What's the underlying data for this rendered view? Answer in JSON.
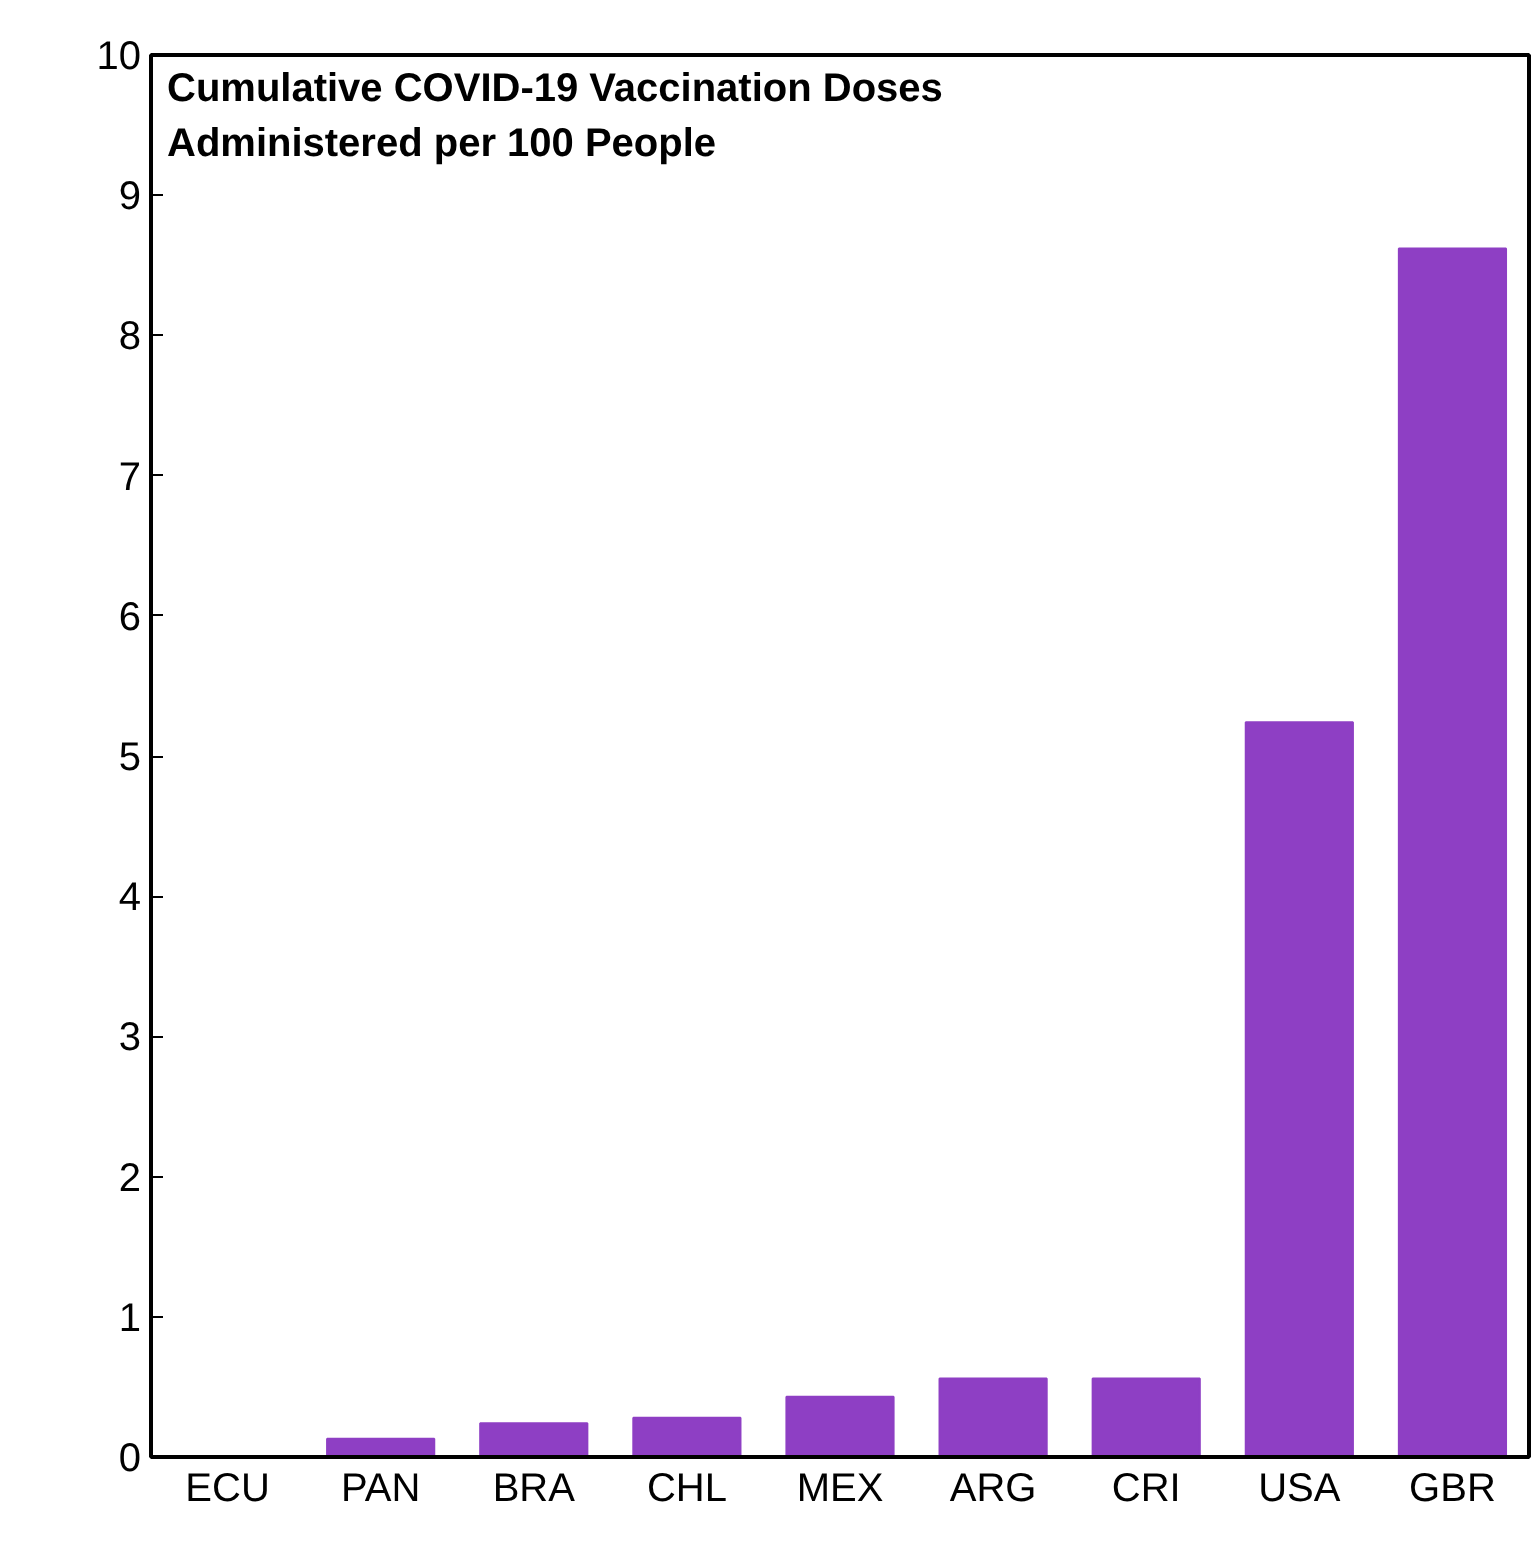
{
  "chart_data": {
    "type": "bar",
    "title": "Cumulative COVID-19 Vaccination Doses\nAdministered per 100 People",
    "categories": [
      "ECU",
      "PAN",
      "BRA",
      "CHL",
      "MEX",
      "ARG",
      "CRI",
      "USA",
      "GBR"
    ],
    "values": [
      0,
      0.13,
      0.24,
      0.28,
      0.43,
      0.56,
      0.56,
      5.24,
      8.62
    ],
    "color": "#8e3fc4",
    "ylim": [
      0,
      10
    ],
    "yticks": [
      0,
      1,
      2,
      3,
      4,
      5,
      6,
      7,
      8,
      9,
      10
    ],
    "grid": false
  }
}
